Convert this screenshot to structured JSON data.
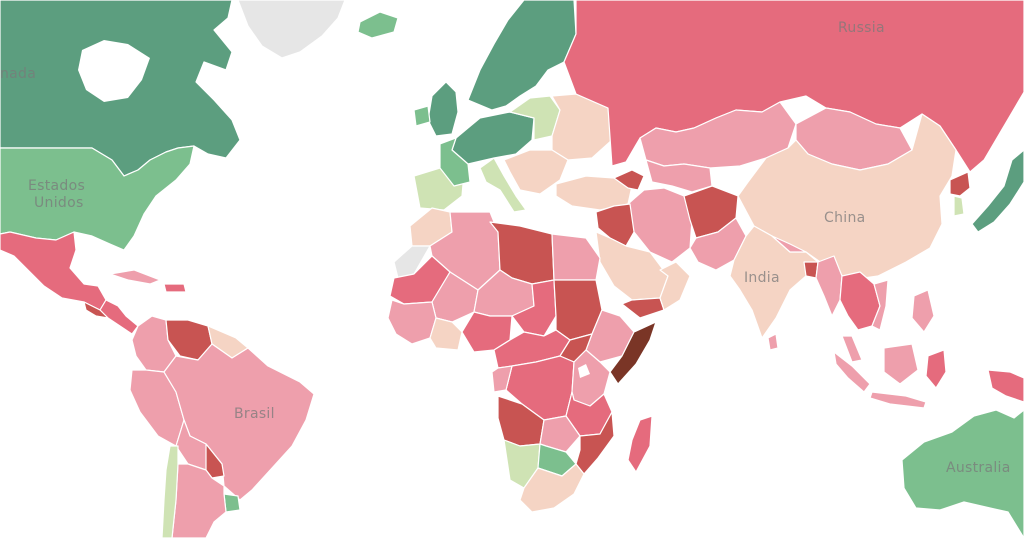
{
  "labels": {
    "canada_partial": "nada",
    "usa_line1": "Estados",
    "usa_line2": "Unidos",
    "russia": "Russia",
    "china": "China",
    "india": "India",
    "brazil": "Brasil",
    "australia": "Australia"
  },
  "palette": {
    "no_data": "#e6e6e6",
    "dark_green": "#5c9e7f",
    "mid_green": "#7cbf8e",
    "light_green": "#cfe3b4",
    "peach": "#f5d4c4",
    "light_pink": "#ee9fac",
    "pink_red": "#e56b7d",
    "dark_red": "#c85452",
    "darkest": "#7a3526"
  }
}
